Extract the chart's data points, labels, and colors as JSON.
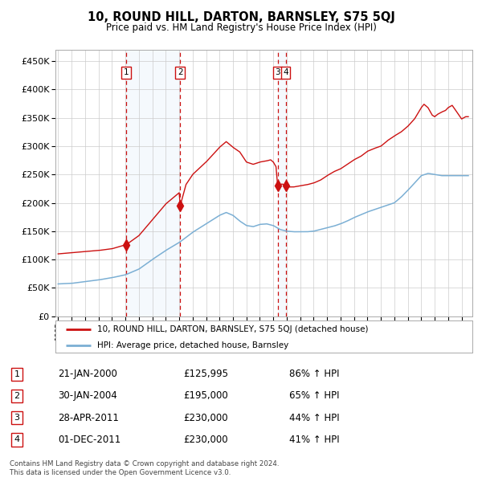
{
  "title": "10, ROUND HILL, DARTON, BARNSLEY, S75 5QJ",
  "subtitle": "Price paid vs. HM Land Registry's House Price Index (HPI)",
  "footer": "Contains HM Land Registry data © Crown copyright and database right 2024.\nThis data is licensed under the Open Government Licence v3.0.",
  "legend_line1": "10, ROUND HILL, DARTON, BARNSLEY, S75 5QJ (detached house)",
  "legend_line2": "HPI: Average price, detached house, Barnsley",
  "hpi_color": "#7bafd4",
  "price_color": "#cc1111",
  "marker_color": "#cc1111",
  "sale_color_box": "#cc1111",
  "shade_color": "#cce0f5",
  "dashed_line_color": "#cc1111",
  "transactions": [
    {
      "label": "1",
      "date_str": "21-JAN-2000",
      "date_num": 2000.054,
      "price": 125995,
      "hpi_pct": "86% ↑ HPI"
    },
    {
      "label": "2",
      "date_str": "30-JAN-2004",
      "date_num": 2004.082,
      "price": 195000,
      "hpi_pct": "65% ↑ HPI"
    },
    {
      "label": "3",
      "date_str": "28-APR-2011",
      "date_num": 2011.32,
      "price": 230000,
      "hpi_pct": "44% ↑ HPI"
    },
    {
      "label": "4",
      "date_str": "01-DEC-2011",
      "date_num": 2011.916,
      "price": 230000,
      "hpi_pct": "41% ↑ HPI"
    }
  ],
  "ylim": [
    0,
    470000
  ],
  "yticks": [
    0,
    50000,
    100000,
    150000,
    200000,
    250000,
    300000,
    350000,
    400000,
    450000
  ],
  "xlim_start": 1994.8,
  "xlim_end": 2025.8,
  "hpi_knots": [
    [
      1995.0,
      57000
    ],
    [
      1996.0,
      58000
    ],
    [
      1997.0,
      61000
    ],
    [
      1998.0,
      64000
    ],
    [
      1999.0,
      68000
    ],
    [
      2000.0,
      73000
    ],
    [
      2001.0,
      83000
    ],
    [
      2002.0,
      100000
    ],
    [
      2003.0,
      116000
    ],
    [
      2004.0,
      130000
    ],
    [
      2005.0,
      148000
    ],
    [
      2006.0,
      163000
    ],
    [
      2007.0,
      178000
    ],
    [
      2007.5,
      183000
    ],
    [
      2008.0,
      178000
    ],
    [
      2008.5,
      168000
    ],
    [
      2009.0,
      160000
    ],
    [
      2009.5,
      158000
    ],
    [
      2010.0,
      162000
    ],
    [
      2010.5,
      163000
    ],
    [
      2011.0,
      160000
    ],
    [
      2011.5,
      153000
    ],
    [
      2012.0,
      150000
    ],
    [
      2012.5,
      149000
    ],
    [
      2013.0,
      149000
    ],
    [
      2013.5,
      149000
    ],
    [
      2014.0,
      150000
    ],
    [
      2014.5,
      153000
    ],
    [
      2015.0,
      156000
    ],
    [
      2015.5,
      159000
    ],
    [
      2016.0,
      163000
    ],
    [
      2016.5,
      168000
    ],
    [
      2017.0,
      174000
    ],
    [
      2017.5,
      179000
    ],
    [
      2018.0,
      184000
    ],
    [
      2018.5,
      188000
    ],
    [
      2019.0,
      192000
    ],
    [
      2019.5,
      196000
    ],
    [
      2020.0,
      200000
    ],
    [
      2020.5,
      210000
    ],
    [
      2021.0,
      222000
    ],
    [
      2021.5,
      235000
    ],
    [
      2022.0,
      248000
    ],
    [
      2022.5,
      252000
    ],
    [
      2023.0,
      250000
    ],
    [
      2023.5,
      248000
    ],
    [
      2024.0,
      248000
    ],
    [
      2024.5,
      248000
    ],
    [
      2025.0,
      248000
    ],
    [
      2025.5,
      248000
    ]
  ],
  "red_knots": [
    [
      1995.0,
      110000
    ],
    [
      1996.0,
      112000
    ],
    [
      1997.0,
      114000
    ],
    [
      1998.0,
      116000
    ],
    [
      1999.0,
      119000
    ],
    [
      2000.0,
      126000
    ],
    [
      2000.054,
      125995
    ],
    [
      2001.0,
      142000
    ],
    [
      2002.0,
      170000
    ],
    [
      2003.0,
      198000
    ],
    [
      2004.0,
      218000
    ],
    [
      2004.082,
      195000
    ],
    [
      2004.5,
      232000
    ],
    [
      2005.0,
      250000
    ],
    [
      2006.0,
      272000
    ],
    [
      2007.0,
      298000
    ],
    [
      2007.5,
      308000
    ],
    [
      2008.0,
      298000
    ],
    [
      2008.5,
      290000
    ],
    [
      2009.0,
      272000
    ],
    [
      2009.5,
      268000
    ],
    [
      2010.0,
      272000
    ],
    [
      2010.5,
      274000
    ],
    [
      2010.8,
      276000
    ],
    [
      2011.0,
      272000
    ],
    [
      2011.1,
      268000
    ],
    [
      2011.2,
      264000
    ],
    [
      2011.32,
      230000
    ],
    [
      2011.5,
      232000
    ],
    [
      2011.6,
      233000
    ],
    [
      2011.7,
      233000
    ],
    [
      2011.916,
      230000
    ],
    [
      2012.0,
      228000
    ],
    [
      2012.5,
      228000
    ],
    [
      2013.0,
      230000
    ],
    [
      2013.5,
      232000
    ],
    [
      2014.0,
      235000
    ],
    [
      2014.5,
      240000
    ],
    [
      2015.0,
      248000
    ],
    [
      2015.5,
      255000
    ],
    [
      2016.0,
      260000
    ],
    [
      2016.5,
      268000
    ],
    [
      2017.0,
      276000
    ],
    [
      2017.5,
      282000
    ],
    [
      2018.0,
      291000
    ],
    [
      2018.5,
      296000
    ],
    [
      2019.0,
      300000
    ],
    [
      2019.5,
      310000
    ],
    [
      2020.0,
      318000
    ],
    [
      2020.5,
      325000
    ],
    [
      2021.0,
      335000
    ],
    [
      2021.5,
      348000
    ],
    [
      2022.0,
      368000
    ],
    [
      2022.2,
      374000
    ],
    [
      2022.5,
      368000
    ],
    [
      2022.8,
      355000
    ],
    [
      2023.0,
      352000
    ],
    [
      2023.2,
      356000
    ],
    [
      2023.5,
      360000
    ],
    [
      2023.8,
      363000
    ],
    [
      2024.0,
      368000
    ],
    [
      2024.3,
      372000
    ],
    [
      2024.5,
      365000
    ],
    [
      2024.8,
      355000
    ],
    [
      2025.0,
      348000
    ],
    [
      2025.3,
      352000
    ]
  ]
}
